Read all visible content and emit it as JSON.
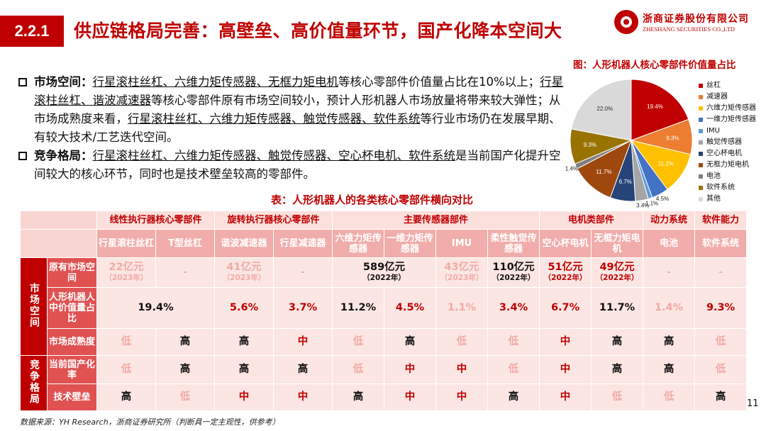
{
  "header": {
    "section_no": "2.2.1",
    "title": "供应链格局完善：高壁垒、高价值量环节，国产化降本空间大",
    "logo_cn": "浙商证券股份有限公司",
    "logo_en": "ZHESHANG SECURITIES CO.,LTD"
  },
  "bullets": [
    {
      "label": "市场空间：",
      "parts": [
        {
          "t": "行星滚柱丝杠、六维力矩传感器、无框力矩电机",
          "u": true
        },
        {
          "t": "等核心零部件价值量占比在10%以上；",
          "u": false
        },
        {
          "t": "行星滚柱丝杠、谐波减速器",
          "u": true
        },
        {
          "t": "等核心零部件原有市场空间较小，预计人形机器人市场放量将带来较大弹性；从市场成熟度来看，",
          "u": false
        },
        {
          "t": "行星滚柱丝杠、六维力矩传感器、触觉传感器、软件系统",
          "u": true
        },
        {
          "t": "等行业市场仍在发展早期、有较大技术/工艺迭代空间。",
          "u": false
        }
      ]
    },
    {
      "label": "竞争格局：",
      "parts": [
        {
          "t": "行星滚柱丝杠、六维力矩传感器、触觉传感器、空心杯电机、软件系统",
          "u": true
        },
        {
          "t": "是当前国产化提升空间较大的核心环节，同时也是技术壁垒较高的零部件。",
          "u": false
        }
      ]
    }
  ],
  "chart_data": {
    "type": "pie",
    "title": "图：人形机器人核心零部件价值量占比",
    "categories": [
      "丝杠",
      "减速器",
      "六维力矩传感器",
      "一维力矩传感器",
      "IMU",
      "触觉传感器",
      "空心杯电机",
      "无框力矩电机",
      "电池",
      "软件系统",
      "其他"
    ],
    "values": [
      19.4,
      9.3,
      11.2,
      4.5,
      1.1,
      3.4,
      6.7,
      11.7,
      1.4,
      9.3,
      22.0
    ],
    "value_labels": [
      "19.4%",
      "9.3%",
      "11.2%",
      "4.5%",
      "1.1%",
      "3.4%",
      "6.7%",
      "11.7%",
      "1.4%",
      "9.3%",
      "22.0%"
    ],
    "colors": [
      "#c00000",
      "#ed7d31",
      "#ffc000",
      "#4472c4",
      "#5b9bd5",
      "#a5a5a5",
      "#264478",
      "#9e480e",
      "#7f7f7f",
      "#997300",
      "#d9d9d9"
    ],
    "legend_position": "right"
  },
  "table": {
    "title": "表：人形机器人的各类核心零部件横向对比",
    "groups": [
      "线性执行器核心零部件",
      "旋转执行器核心零部件",
      "主要传感器部件",
      "电机类部件",
      "动力系统",
      "软件能力"
    ],
    "components": [
      "行星滚柱丝杠",
      "T型丝杠",
      "谐波减速器",
      "行星减速器",
      "六维力矩传感器",
      "一维力矩传感器",
      "IMU",
      "柔性触觉传感器",
      "空心杯电机",
      "无框力矩电机",
      "电池",
      "软件系统"
    ],
    "section_market": "市场空间",
    "section_comp": "竞争格局",
    "row_labels": [
      "原有市场空间",
      "人形机器人中价值量占比",
      "市场成熟度",
      "当前国产化率",
      "技术壁垒"
    ],
    "market_size": {
      "screw": {
        "v": "22亿元",
        "y": "（2023年）"
      },
      "tscrew": "-",
      "harmonic": {
        "v": "41亿元",
        "y": "（2023年）"
      },
      "planetary": "-",
      "sensors": {
        "v": "589亿元",
        "y": "（2022年）"
      },
      "imu": {
        "v": "43亿元",
        "y": "（2023年）"
      },
      "tactile": {
        "v": "110亿元",
        "y": "（2022年）"
      },
      "coreless": {
        "v": "51亿元",
        "y": "（2022年）"
      },
      "frameless": {
        "v": "49亿元",
        "y": "（2022年）"
      },
      "battery": "-",
      "software": "-"
    },
    "value_share": [
      "19.4%",
      "5.6%",
      "3.7%",
      "11.2%",
      "4.5%",
      "1.1%",
      "3.4%",
      "6.7%",
      "11.7%",
      "1.4%",
      "9.3%"
    ],
    "maturity": [
      "低",
      "高",
      "高",
      "中",
      "低",
      "高",
      "低",
      "低",
      "中",
      "高",
      "高",
      "低"
    ],
    "localization": [
      "低",
      "高",
      "高",
      "高",
      "低",
      "中",
      "中",
      "低",
      "中",
      "高",
      "高",
      "低"
    ],
    "barrier": [
      "高",
      "低",
      "中",
      "中",
      "高",
      "中",
      "中",
      "高",
      "中",
      "低",
      "低",
      "高"
    ]
  },
  "page_no": "11",
  "source": "数据来源：YH Research，浙商证券研究所（判断具一定主观性，供参考）"
}
